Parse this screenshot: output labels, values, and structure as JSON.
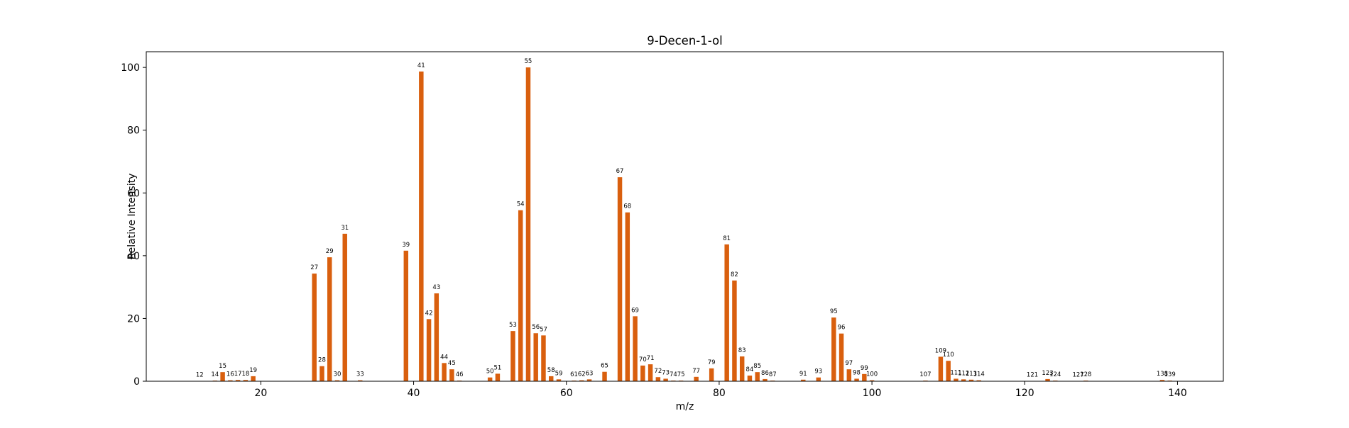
{
  "chart_data": {
    "type": "bar",
    "title": "9-Decen-1-ol",
    "xlabel": "m/z",
    "ylabel": "Relative Intensity",
    "xlim": [
      5,
      146
    ],
    "ylim": [
      0,
      105
    ],
    "xticks": [
      20,
      40,
      60,
      80,
      100,
      120,
      140
    ],
    "yticks": [
      0,
      20,
      40,
      60,
      80,
      100
    ],
    "grid": false,
    "bar_color": "#d95f0e",
    "x": [
      12,
      14,
      15,
      16,
      17,
      18,
      19,
      27,
      28,
      29,
      30,
      31,
      33,
      39,
      41,
      42,
      43,
      44,
      45,
      46,
      50,
      51,
      53,
      54,
      55,
      56,
      57,
      58,
      59,
      61,
      62,
      63,
      65,
      67,
      68,
      69,
      70,
      71,
      72,
      73,
      74,
      75,
      77,
      79,
      81,
      82,
      83,
      84,
      85,
      86,
      87,
      91,
      93,
      95,
      96,
      97,
      98,
      99,
      100,
      107,
      109,
      110,
      111,
      112,
      113,
      114,
      121,
      123,
      124,
      127,
      128,
      138,
      139
    ],
    "values": [
      0.1,
      0.2,
      2.9,
      0.3,
      0.4,
      0.4,
      1.6,
      34.3,
      4.8,
      39.5,
      0.3,
      47.0,
      0.3,
      41.6,
      98.7,
      19.8,
      28.0,
      5.8,
      3.8,
      0.2,
      1.2,
      2.4,
      16.0,
      54.5,
      100.0,
      15.3,
      14.6,
      1.6,
      0.6,
      0.2,
      0.3,
      0.6,
      3.0,
      65.0,
      53.8,
      20.7,
      5.0,
      5.4,
      1.3,
      0.8,
      0.2,
      0.2,
      1.4,
      4.1,
      43.6,
      32.1,
      7.9,
      1.8,
      2.9,
      0.7,
      0.2,
      0.5,
      1.2,
      20.3,
      15.2,
      3.8,
      0.8,
      2.3,
      0.3,
      0.2,
      7.8,
      6.5,
      0.8,
      0.6,
      0.5,
      0.3,
      0.1,
      0.7,
      0.2,
      0.1,
      0.2,
      0.4,
      0.2
    ],
    "labels": [
      "12",
      "14",
      "15",
      "16",
      "17",
      "18",
      "19",
      "27",
      "28",
      "29",
      "30",
      "31",
      "33",
      "39",
      "41",
      "42",
      "43",
      "44",
      "45",
      "46",
      "50",
      "51",
      "53",
      "54",
      "55",
      "56",
      "57",
      "58",
      "59",
      "61",
      "62",
      "63",
      "65",
      "67",
      "68",
      "69",
      "70",
      "71",
      "72",
      "73",
      "74",
      "75",
      "77",
      "79",
      "81",
      "82",
      "83",
      "84",
      "85",
      "86",
      "87",
      "91",
      "93",
      "95",
      "96",
      "97",
      "98",
      "99",
      "100",
      "107",
      "109",
      "110",
      "111",
      "112",
      "113",
      "114",
      "121",
      "123",
      "124",
      "127",
      "128",
      "138",
      "139"
    ]
  }
}
